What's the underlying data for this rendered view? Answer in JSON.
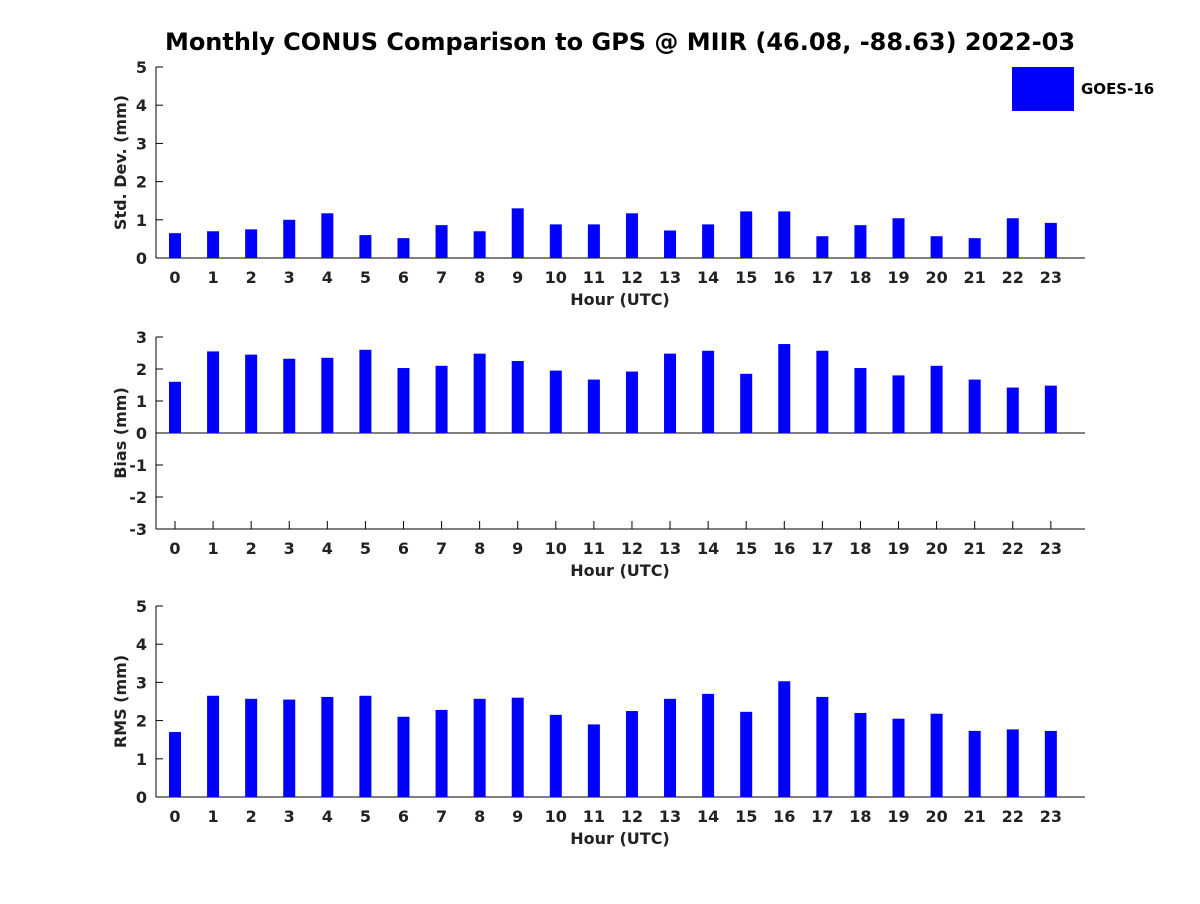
{
  "title": "Monthly CONUS Comparison to GPS @ MIIR (46.08, -88.63) 2022-03",
  "legend": {
    "label": "GOES-16",
    "color": "#0000ff"
  },
  "chart_data": [
    {
      "type": "bar",
      "ylabel": "Std. Dev. (mm)",
      "xlabel": "Hour (UTC)",
      "ylim": [
        0,
        5
      ],
      "yticks": [
        0,
        1,
        2,
        3,
        4,
        5
      ],
      "categories": [
        "0",
        "1",
        "2",
        "3",
        "4",
        "5",
        "6",
        "7",
        "8",
        "9",
        "10",
        "11",
        "12",
        "13",
        "14",
        "15",
        "16",
        "17",
        "18",
        "19",
        "20",
        "21",
        "22",
        "23"
      ],
      "series": [
        {
          "name": "GOES-16",
          "color": "#0000ff",
          "values": [
            0.65,
            0.7,
            0.75,
            1.0,
            1.17,
            0.6,
            0.52,
            0.86,
            0.7,
            1.3,
            0.88,
            0.88,
            1.17,
            0.72,
            0.88,
            1.22,
            1.22,
            0.57,
            0.86,
            1.04,
            0.57,
            0.52,
            1.04,
            0.92
          ]
        }
      ]
    },
    {
      "type": "bar",
      "ylabel": "Bias (mm)",
      "xlabel": "Hour (UTC)",
      "ylim": [
        -3,
        3
      ],
      "yticks": [
        -3,
        -2,
        -1,
        0,
        1,
        2,
        3
      ],
      "categories": [
        "0",
        "1",
        "2",
        "3",
        "4",
        "5",
        "6",
        "7",
        "8",
        "9",
        "10",
        "11",
        "12",
        "13",
        "14",
        "15",
        "16",
        "17",
        "18",
        "19",
        "20",
        "21",
        "22",
        "23"
      ],
      "series": [
        {
          "name": "GOES-16",
          "color": "#0000ff",
          "values": [
            1.6,
            2.55,
            2.45,
            2.32,
            2.35,
            2.6,
            2.03,
            2.1,
            2.48,
            2.25,
            1.95,
            1.67,
            1.92,
            2.48,
            2.57,
            1.85,
            2.78,
            2.57,
            2.03,
            1.8,
            2.1,
            1.67,
            1.42,
            1.48
          ]
        }
      ]
    },
    {
      "type": "bar",
      "ylabel": "RMS (mm)",
      "xlabel": "Hour (UTC)",
      "ylim": [
        0,
        5
      ],
      "yticks": [
        0,
        1,
        2,
        3,
        4,
        5
      ],
      "categories": [
        "0",
        "1",
        "2",
        "3",
        "4",
        "5",
        "6",
        "7",
        "8",
        "9",
        "10",
        "11",
        "12",
        "13",
        "14",
        "15",
        "16",
        "17",
        "18",
        "19",
        "20",
        "21",
        "22",
        "23"
      ],
      "series": [
        {
          "name": "GOES-16",
          "color": "#0000ff",
          "values": [
            1.7,
            2.65,
            2.57,
            2.55,
            2.62,
            2.65,
            2.1,
            2.28,
            2.57,
            2.6,
            2.15,
            1.9,
            2.25,
            2.57,
            2.7,
            2.23,
            3.03,
            2.62,
            2.2,
            2.05,
            2.18,
            1.73,
            1.77,
            1.73
          ]
        }
      ]
    }
  ]
}
